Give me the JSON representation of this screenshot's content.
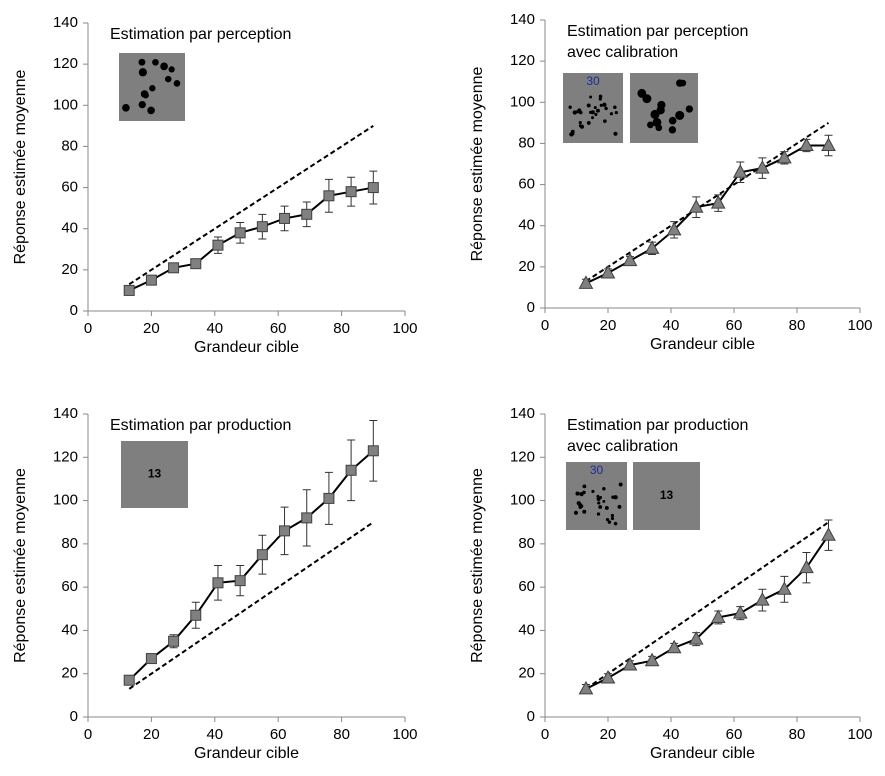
{
  "chart_data": [
    {
      "type": "line",
      "title": [
        "Estimation par perception"
      ],
      "xlabel": "Grandeur cible",
      "ylabel": "Réponse estimée moyenne",
      "x": [
        13,
        20,
        27,
        34,
        41,
        48,
        55,
        62,
        69,
        76,
        83,
        90
      ],
      "series": [
        {
          "color": "#808080",
          "marker": "square",
          "values": [
            10,
            15,
            21,
            23,
            32,
            38,
            41,
            45,
            47,
            56,
            58,
            60
          ],
          "errors": [
            1,
            2,
            2,
            2,
            4,
            5,
            6,
            6,
            6,
            8,
            7,
            8
          ]
        }
      ],
      "reference": {
        "x": [
          13,
          90
        ],
        "values": [
          13,
          90
        ]
      },
      "inset_labels": [],
      "xlim": [
        0,
        100
      ],
      "xticks": [
        0,
        20,
        40,
        60,
        80,
        100
      ],
      "ylim": [
        0,
        140
      ],
      "yticks": [
        0,
        20,
        40,
        60,
        80,
        100,
        120,
        140
      ]
    },
    {
      "type": "line",
      "title": [
        "Estimation par perception",
        "avec calibration"
      ],
      "xlabel": "Grandeur cible",
      "ylabel": "Réponse estimée moyenne",
      "x": [
        13,
        20,
        27,
        34,
        41,
        48,
        55,
        62,
        69,
        76,
        83,
        90
      ],
      "series": [
        {
          "color": "#808080",
          "marker": "triangle",
          "values": [
            12,
            17,
            23,
            29,
            38,
            49,
            51,
            66,
            68,
            73,
            79,
            79
          ],
          "errors": [
            2,
            2,
            2,
            3,
            4,
            5,
            4,
            5,
            5,
            3,
            3,
            5
          ]
        }
      ],
      "reference": {
        "x": [
          13,
          90
        ],
        "values": [
          13,
          90
        ]
      },
      "inset_labels": [
        "30"
      ],
      "xlim": [
        0,
        100
      ],
      "xticks": [
        0,
        20,
        40,
        60,
        80,
        100
      ],
      "ylim": [
        0,
        140
      ],
      "yticks": [
        0,
        20,
        40,
        60,
        80,
        100,
        120,
        140
      ]
    },
    {
      "type": "line",
      "title": [
        "Estimation par production"
      ],
      "xlabel": "Grandeur cible",
      "ylabel": "Réponse estimée moyenne",
      "x": [
        13,
        20,
        27,
        34,
        41,
        48,
        55,
        62,
        69,
        76,
        83,
        90
      ],
      "series": [
        {
          "color": "#808080",
          "marker": "square",
          "values": [
            17,
            27,
            35,
            47,
            62,
            63,
            75,
            86,
            92,
            101,
            114,
            123
          ],
          "errors": [
            1,
            2,
            3,
            6,
            8,
            7,
            9,
            11,
            13,
            12,
            14,
            14
          ]
        }
      ],
      "reference": {
        "x": [
          13,
          90
        ],
        "values": [
          13,
          90
        ]
      },
      "inset_labels": [
        "13"
      ],
      "xlim": [
        0,
        100
      ],
      "xticks": [
        0,
        20,
        40,
        60,
        80,
        100
      ],
      "ylim": [
        0,
        140
      ],
      "yticks": [
        0,
        20,
        40,
        60,
        80,
        100,
        120,
        140
      ]
    },
    {
      "type": "line",
      "title": [
        "Estimation par production",
        "avec calibration"
      ],
      "xlabel": "Grandeur cible",
      "ylabel": "Réponse estimée moyenne",
      "x": [
        13,
        20,
        27,
        34,
        41,
        48,
        55,
        62,
        69,
        76,
        83,
        90
      ],
      "series": [
        {
          "color": "#808080",
          "marker": "triangle",
          "values": [
            13,
            18,
            24,
            26,
            32,
            36,
            46,
            48,
            54,
            59,
            69,
            84
          ],
          "errors": [
            2,
            2,
            2,
            2,
            2,
            3,
            3,
            3,
            5,
            6,
            7,
            7
          ]
        }
      ],
      "reference": {
        "x": [
          13,
          90
        ],
        "values": [
          13,
          90
        ]
      },
      "inset_labels": [
        "30",
        "13"
      ],
      "xlim": [
        0,
        100
      ],
      "xticks": [
        0,
        20,
        40,
        60,
        80,
        100
      ],
      "ylim": [
        0,
        140
      ],
      "yticks": [
        0,
        20,
        40,
        60,
        80,
        100,
        120,
        140
      ]
    }
  ]
}
